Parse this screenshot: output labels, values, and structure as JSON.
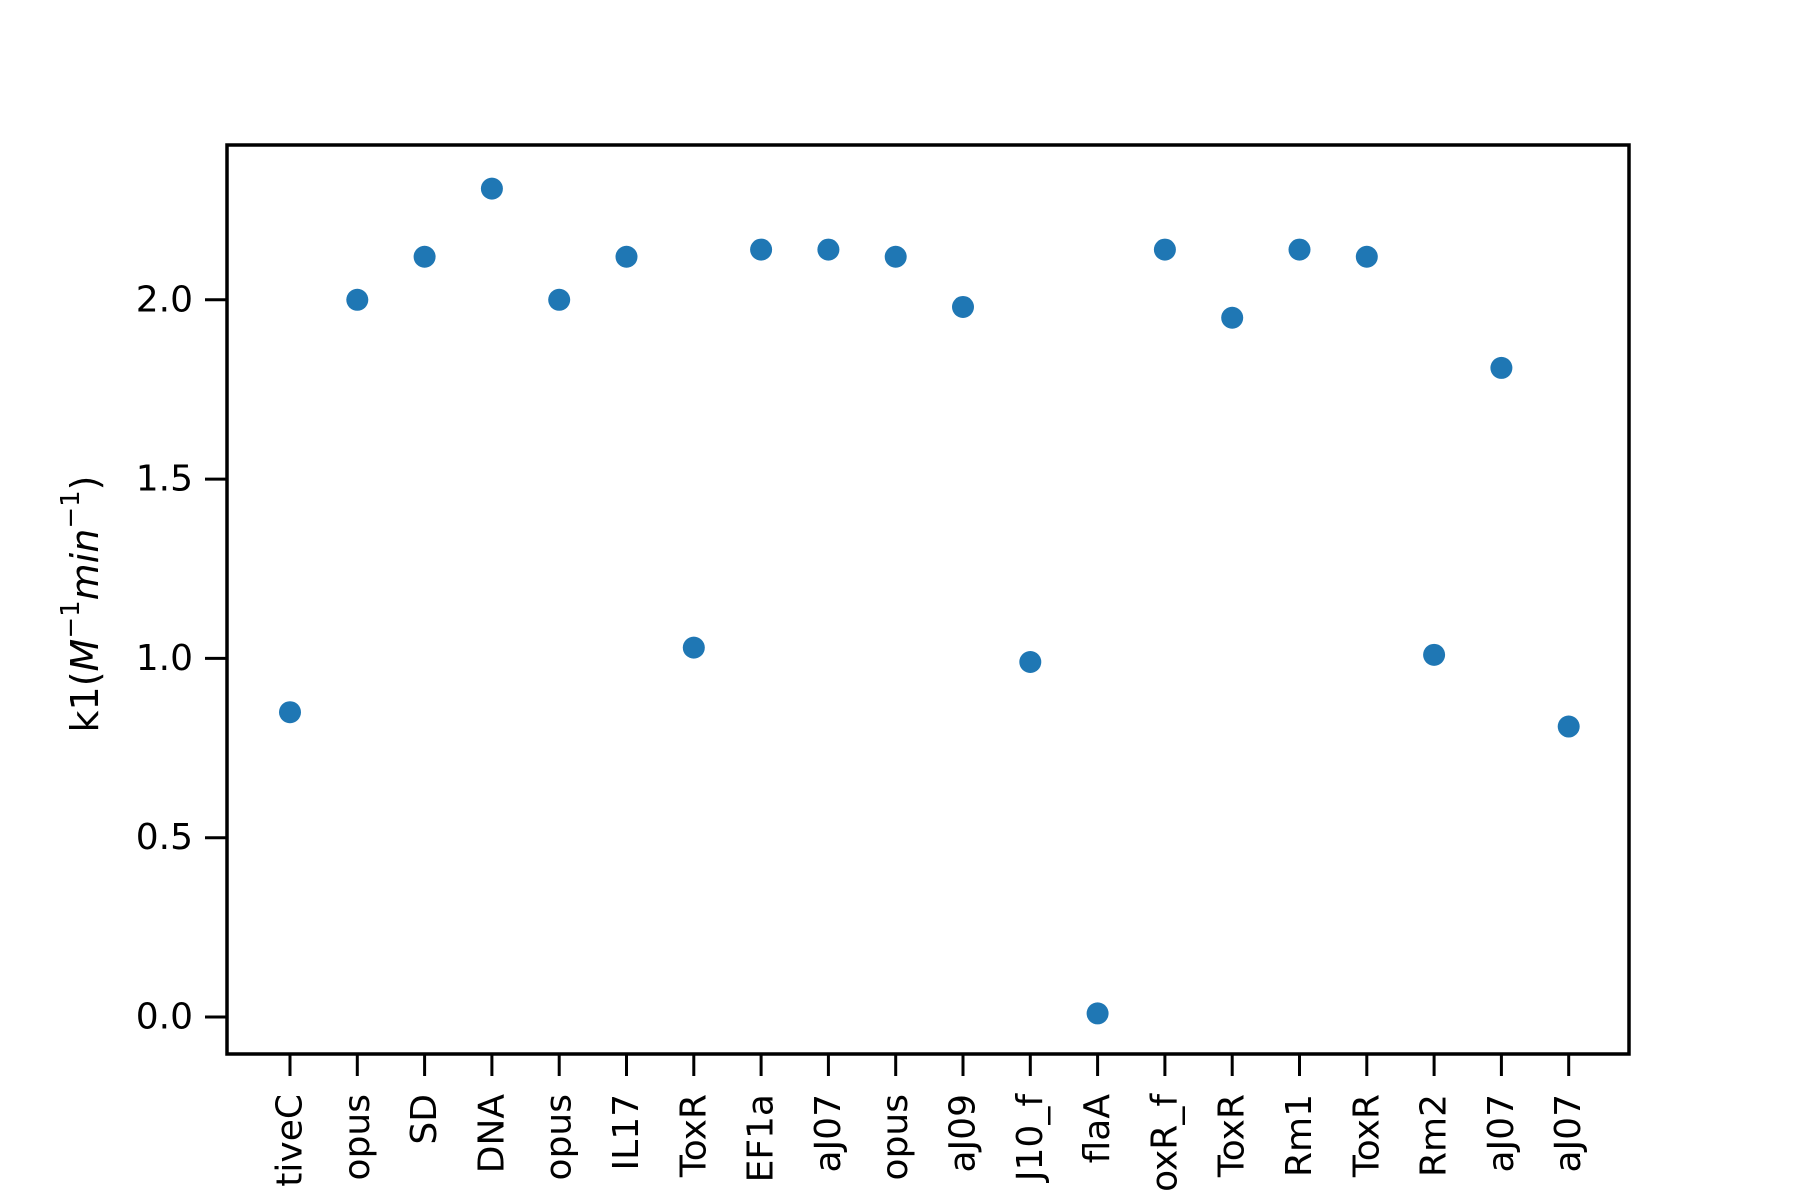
{
  "chart_data": {
    "type": "scatter",
    "title": "",
    "xlabel": "",
    "ylabel": "k1(M−1min−1)",
    "ylabel_parts": {
      "prefix": "k1(",
      "M": "M",
      "exp1": "−1",
      "min": "min",
      "exp2": "−1",
      "suffix": ")"
    },
    "categories": [
      "tiveC",
      "opus",
      "SD",
      "DNA",
      "opus",
      "IL17",
      "ToxR",
      "EF1a",
      "aJ07",
      "opus",
      "aJ09",
      "J10_f",
      "flaA",
      "oxR_f",
      "ToxR",
      "Rm1",
      "ToxR",
      "Rm2",
      "aJ07",
      "aJ07"
    ],
    "values": [
      0.85,
      2.0,
      2.12,
      2.31,
      2.0,
      2.12,
      1.03,
      2.14,
      2.14,
      2.12,
      1.98,
      0.99,
      0.01,
      2.14,
      1.95,
      2.14,
      2.12,
      1.01,
      1.81,
      0.81
    ],
    "yticks": [
      "0.0",
      "0.5",
      "1.0",
      "1.5",
      "2.0"
    ],
    "ylim": [
      -0.1,
      2.43
    ],
    "grid": false,
    "legend": "none",
    "marker_color": "#1f77b4"
  }
}
